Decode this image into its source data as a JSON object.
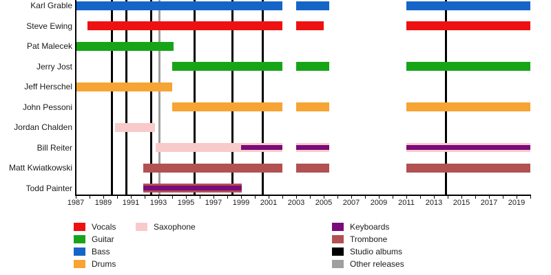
{
  "chart_data": {
    "type": "timeline",
    "title": "",
    "x_axis": {
      "start": 1987,
      "end": 2020,
      "tick_interval": 1,
      "label_interval": 2,
      "tick_labels": [
        "1987",
        "1989",
        "1991",
        "1993",
        "1995",
        "1997",
        "1999",
        "2001",
        "2003",
        "2005",
        "2007",
        "2009",
        "2011",
        "2013",
        "2015",
        "2017",
        "2019"
      ]
    },
    "members": [
      {
        "name": "Karl Grable",
        "slug": "karl-grable",
        "bars": [
          {
            "instrument": "bass",
            "from": 1987,
            "to": 2002
          },
          {
            "instrument": "bass",
            "from": 2003,
            "to": 2005.4
          },
          {
            "instrument": "bass",
            "from": 2011,
            "to": 2020
          }
        ]
      },
      {
        "name": "Steve Ewing",
        "slug": "steve-ewing",
        "bars": [
          {
            "instrument": "vocals",
            "from": 1987.85,
            "to": 2002
          },
          {
            "instrument": "vocals",
            "from": 2003,
            "to": 2005
          },
          {
            "instrument": "vocals",
            "from": 2011,
            "to": 2020
          }
        ]
      },
      {
        "name": "Pat Malecek",
        "slug": "pat-malecek",
        "bars": [
          {
            "instrument": "guitar",
            "from": 1987,
            "to": 1994.1
          }
        ]
      },
      {
        "name": "Jerry Jost",
        "slug": "jerry-jost",
        "bars": [
          {
            "instrument": "guitar",
            "from": 1994,
            "to": 2002
          },
          {
            "instrument": "guitar",
            "from": 2003,
            "to": 2005.4
          },
          {
            "instrument": "guitar",
            "from": 2011,
            "to": 2020
          }
        ]
      },
      {
        "name": "Jeff Herschel",
        "slug": "jeff-herschel",
        "bars": [
          {
            "instrument": "drums",
            "from": 1987,
            "to": 1994
          }
        ]
      },
      {
        "name": "John Pessoni",
        "slug": "john-pessoni",
        "bars": [
          {
            "instrument": "drums",
            "from": 1994,
            "to": 2002
          },
          {
            "instrument": "drums",
            "from": 2003,
            "to": 2005.4
          },
          {
            "instrument": "drums",
            "from": 2011,
            "to": 2020
          }
        ]
      },
      {
        "name": "Jordan Chalden",
        "slug": "jordan-chalden",
        "bars": [
          {
            "instrument": "saxophone",
            "from": 1989.85,
            "to": 1992.75
          }
        ]
      },
      {
        "name": "Bill Reiter",
        "slug": "bill-reiter",
        "bars": [
          {
            "instrument": "saxophone",
            "from": 1992.8,
            "to": 2002
          },
          {
            "instrument": "saxophone",
            "from": 2003,
            "to": 2005.4
          },
          {
            "instrument": "saxophone",
            "from": 2011,
            "to": 2020
          }
        ],
        "overlays": [
          {
            "instrument": "keyboards",
            "from": 1999,
            "to": 2002
          },
          {
            "instrument": "keyboards",
            "from": 2003,
            "to": 2005.4
          },
          {
            "instrument": "keyboards",
            "from": 2011,
            "to": 2020
          }
        ]
      },
      {
        "name": "Matt Kwiatkowski",
        "slug": "matt-kwiatkowski",
        "bars": [
          {
            "instrument": "trombone",
            "from": 1991.9,
            "to": 2002
          },
          {
            "instrument": "trombone",
            "from": 2003,
            "to": 2005.4
          },
          {
            "instrument": "trombone",
            "from": 2011,
            "to": 2020
          }
        ]
      },
      {
        "name": "Todd Painter",
        "slug": "todd-painter",
        "bars": [
          {
            "instrument": "trombone",
            "from": 1991.9,
            "to": 1999.05
          }
        ],
        "overlays": [
          {
            "instrument": "keyboards",
            "from": 1991.9,
            "to": 1999.05
          }
        ]
      }
    ],
    "events": {
      "studio_albums": [
        1989.6,
        1990.65,
        1992.45,
        1995.6,
        1998.35,
        2000.55,
        2013.85
      ],
      "other_releases": [
        1993.05
      ]
    },
    "colors": {
      "vocals": "#ee1111",
      "guitar": "#17a517",
      "bass": "#1565c8",
      "drums": "#f6a433",
      "saxophone": "#f9caca",
      "keyboards": "#7a0b7a",
      "trombone": "#b25151",
      "studio_albums": "#000000",
      "other_releases": "#9f9f9f"
    },
    "legend": {
      "columns": [
        {
          "items": [
            {
              "label": "Vocals",
              "color": "vocals"
            },
            {
              "label": "Guitar",
              "color": "guitar"
            },
            {
              "label": "Bass",
              "color": "bass"
            },
            {
              "label": "Drums",
              "color": "drums"
            }
          ]
        },
        {
          "items": [
            {
              "label": "Saxophone",
              "color": "saxophone"
            }
          ]
        },
        {
          "items": [
            {
              "label": "Keyboards",
              "color": "keyboards"
            },
            {
              "label": "Trombone",
              "color": "trombone"
            },
            {
              "label": "Studio albums",
              "color": "studio_albums"
            },
            {
              "label": "Other releases",
              "color": "other_releases"
            }
          ]
        }
      ]
    }
  }
}
